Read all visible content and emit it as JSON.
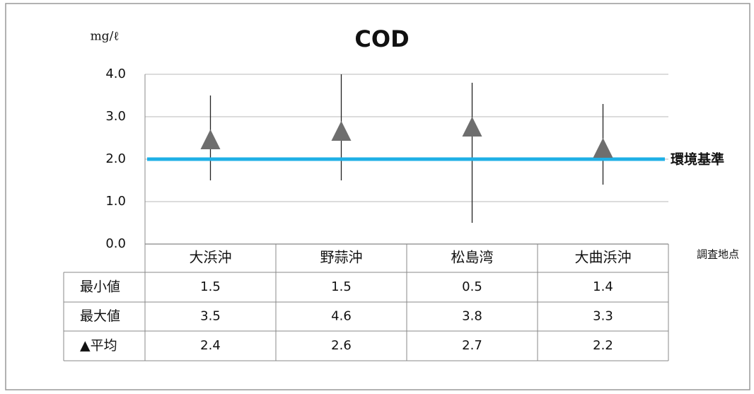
{
  "chart_data": {
    "type": "range",
    "title": "COD",
    "y_label": "mg/ℓ",
    "x_label": "調査地点",
    "categories": [
      "大浜沖",
      "野蒜沖",
      "松島湾",
      "大曲浜沖"
    ],
    "series": [
      {
        "name": "最小値",
        "values": [
          1.5,
          1.5,
          0.5,
          1.4
        ]
      },
      {
        "name": "最大値",
        "values": [
          3.5,
          4.6,
          3.8,
          3.3
        ]
      },
      {
        "name": "▲平均",
        "values": [
          2.4,
          2.6,
          2.7,
          2.2
        ],
        "color": "#6e6e6e"
      }
    ],
    "reference": {
      "value": 2,
      "label": "環境基準",
      "color": "#1fb0e6"
    },
    "ylim": [
      0,
      4
    ],
    "yticks": [
      {
        "value": 0,
        "label": "0.0"
      },
      {
        "value": 1,
        "label": "1.0"
      },
      {
        "value": 2,
        "label": "2.0"
      },
      {
        "value": 3,
        "label": "3.0"
      },
      {
        "value": 4,
        "label": "4.0"
      }
    ],
    "grid": true
  }
}
